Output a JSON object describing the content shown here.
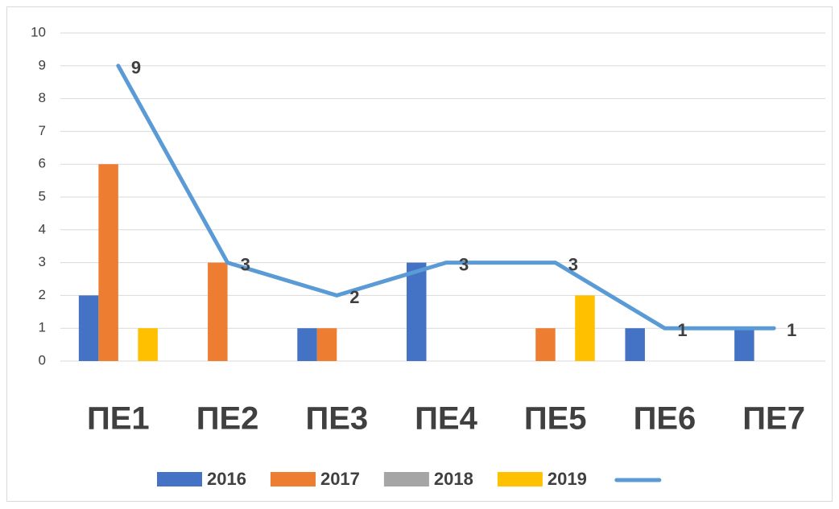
{
  "chart_data": {
    "type": "bar_line",
    "categories": [
      "ПЕ1",
      "ПЕ2",
      "ПЕ3",
      "ПЕ4",
      "ПЕ5",
      "ПЕ6",
      "ПЕ7"
    ],
    "series": [
      {
        "name": "2016",
        "color": "#4472c4",
        "type": "bar",
        "values": [
          2,
          0,
          1,
          3,
          0,
          1,
          1
        ]
      },
      {
        "name": "2017",
        "color": "#ed7d31",
        "type": "bar",
        "values": [
          6,
          3,
          1,
          0,
          1,
          0,
          0
        ]
      },
      {
        "name": "2018",
        "color": "#a5a5a5",
        "type": "bar",
        "values": [
          0,
          0,
          0,
          0,
          0,
          0,
          0
        ]
      },
      {
        "name": "2019",
        "color": "#ffc000",
        "type": "bar",
        "values": [
          1,
          0,
          0,
          0,
          2,
          0,
          0
        ]
      },
      {
        "color": "#5b9bd5",
        "type": "line",
        "values": [
          9,
          3,
          2,
          3,
          3,
          1,
          1
        ],
        "data_labels": true
      }
    ],
    "ylim": [
      0,
      10
    ],
    "yticks": [
      0,
      1,
      2,
      3,
      4,
      5,
      6,
      7,
      8,
      9,
      10
    ],
    "grid": true,
    "legend": "bottom"
  }
}
